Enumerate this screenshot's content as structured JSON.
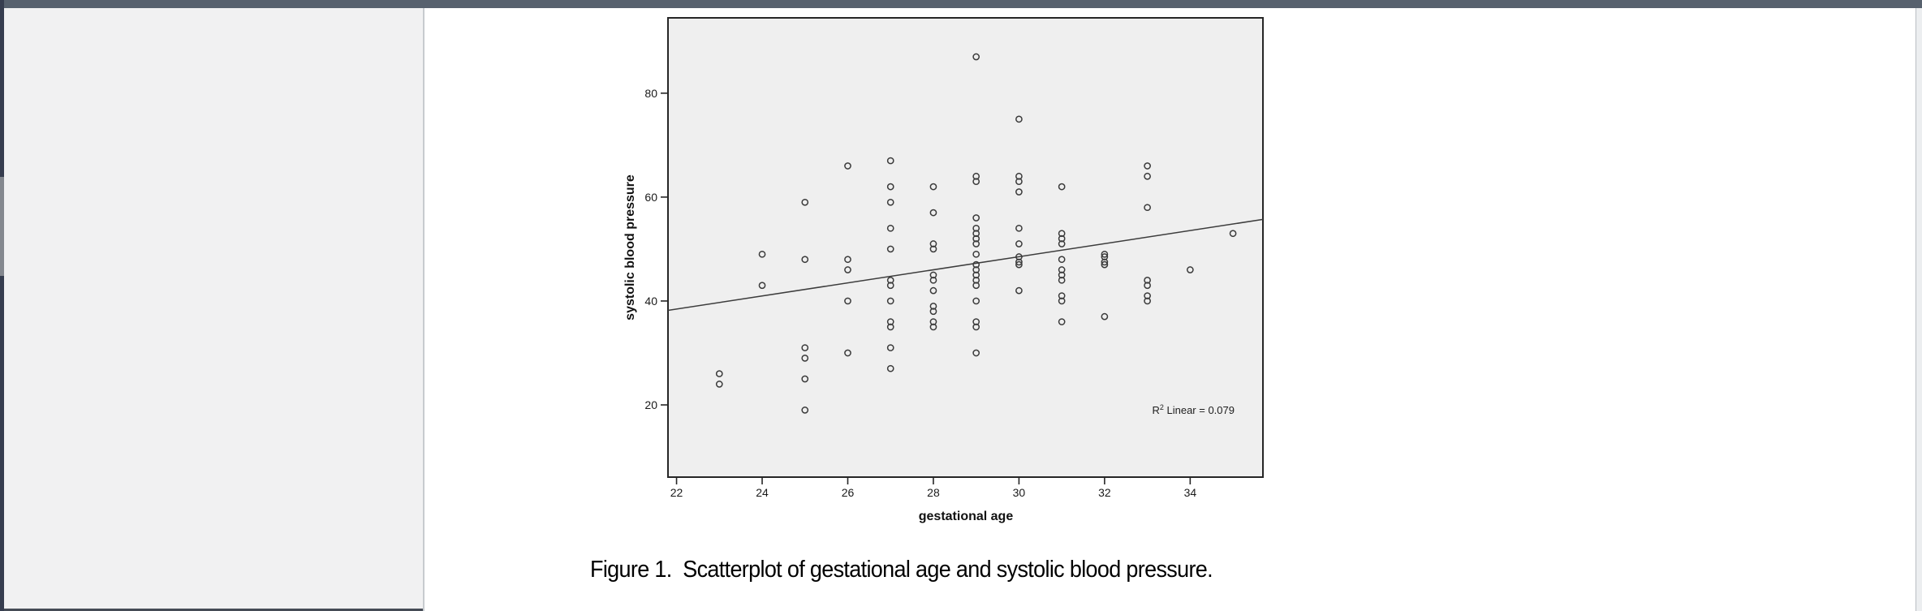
{
  "figure": {
    "caption": "Figure 1.  Scatterplot of gestational age and systolic blood pressure."
  },
  "colors": {
    "topbar": "#57616e",
    "left_edge": "#363d4f",
    "sidebar": "#f1f1f2",
    "plot_fill": "#efefef",
    "page": "#ffffff"
  },
  "chart_data": {
    "type": "scatter",
    "title": "",
    "xlabel": "gestational age",
    "ylabel": "systolic blood pressure",
    "x_ticks": [
      22,
      24,
      26,
      28,
      30,
      32,
      34
    ],
    "y_ticks": [
      20,
      40,
      60,
      80
    ],
    "xlim": [
      21.8,
      35.7
    ],
    "ylim": [
      6.1,
      94.5
    ],
    "grid": false,
    "marker": "open-circle",
    "r2_annotation": {
      "base": "R",
      "sup": "2",
      "rest": " Linear = 0.079"
    },
    "fit_line": {
      "x1": 21.8,
      "y1": 38.2,
      "x2": 35.7,
      "y2": 55.7
    },
    "points": [
      [
        23,
        26
      ],
      [
        23,
        24
      ],
      [
        24,
        49
      ],
      [
        24,
        43
      ],
      [
        25,
        59
      ],
      [
        25,
        48
      ],
      [
        25,
        31
      ],
      [
        25,
        29
      ],
      [
        25,
        25
      ],
      [
        25,
        19
      ],
      [
        26,
        66
      ],
      [
        26,
        48
      ],
      [
        26,
        46
      ],
      [
        26,
        40
      ],
      [
        26,
        30
      ],
      [
        27,
        67
      ],
      [
        27,
        62
      ],
      [
        27,
        59
      ],
      [
        27,
        54
      ],
      [
        27,
        50
      ],
      [
        27,
        44
      ],
      [
        27,
        43
      ],
      [
        27,
        40
      ],
      [
        27,
        36
      ],
      [
        27,
        35
      ],
      [
        27,
        31
      ],
      [
        27,
        27
      ],
      [
        28,
        62
      ],
      [
        28,
        57
      ],
      [
        28,
        51
      ],
      [
        28,
        50
      ],
      [
        28,
        45
      ],
      [
        28,
        44
      ],
      [
        28,
        42
      ],
      [
        28,
        39
      ],
      [
        28,
        38
      ],
      [
        28,
        36
      ],
      [
        28,
        35
      ],
      [
        29,
        87
      ],
      [
        29,
        64
      ],
      [
        29,
        63
      ],
      [
        29,
        56
      ],
      [
        29,
        54
      ],
      [
        29,
        53
      ],
      [
        29,
        52
      ],
      [
        29,
        51
      ],
      [
        29,
        49
      ],
      [
        29,
        47
      ],
      [
        29,
        46
      ],
      [
        29,
        45
      ],
      [
        29,
        44
      ],
      [
        29,
        43
      ],
      [
        29,
        40
      ],
      [
        29,
        36
      ],
      [
        29,
        35
      ],
      [
        29,
        30
      ],
      [
        30,
        75
      ],
      [
        30,
        64
      ],
      [
        30,
        63
      ],
      [
        30,
        61
      ],
      [
        30,
        54
      ],
      [
        30,
        51
      ],
      [
        30,
        48.5
      ],
      [
        30,
        47.5
      ],
      [
        30,
        47
      ],
      [
        30,
        42
      ],
      [
        31,
        62
      ],
      [
        31,
        53
      ],
      [
        31,
        52
      ],
      [
        31,
        51
      ],
      [
        31,
        48
      ],
      [
        31,
        46
      ],
      [
        31,
        45
      ],
      [
        31,
        44
      ],
      [
        31,
        41
      ],
      [
        31,
        40
      ],
      [
        31,
        36
      ],
      [
        32,
        49
      ],
      [
        32,
        48.5
      ],
      [
        32,
        47.5
      ],
      [
        32,
        47
      ],
      [
        32,
        37
      ],
      [
        33,
        66
      ],
      [
        33,
        64
      ],
      [
        33,
        58
      ],
      [
        33,
        44
      ],
      [
        33,
        43
      ],
      [
        33,
        41
      ],
      [
        33,
        40
      ],
      [
        34,
        46
      ],
      [
        35,
        53
      ]
    ]
  }
}
